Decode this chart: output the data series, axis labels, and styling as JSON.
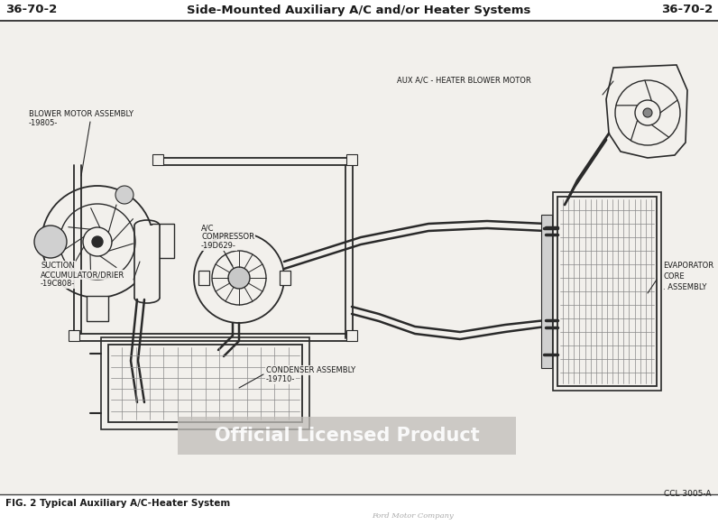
{
  "header_left": "36-70-2",
  "header_center": "Side-Mounted Auxiliary A/C and/or Heater Systems",
  "header_right": "36-70-2",
  "footer_caption": "FIG. 2 Typical Auxiliary A/C-Heater System",
  "footer_script": "Ford Motor Company",
  "watermark": "Official Licensed Product",
  "part_number_ccl": "CCL 3005-A",
  "labels": {
    "blower_motor_line1": "BLOWER MOTOR ASSEMBLY",
    "blower_motor_line2": "-19805-",
    "ac_comp_line1": "A/C",
    "ac_comp_line2": "COMPRESSOR",
    "ac_comp_line3": "-19D629-",
    "suction_line1": "SUCTION",
    "suction_line2": "ACCUMULATOR/DRIER",
    "suction_line3": "-19C808-",
    "condenser_line1": "CONDENSER ASSEMBLY",
    "condenser_line2": "-19710-",
    "aux_blower": "AUX A/C - HEATER BLOWER MOTOR",
    "evap_line1": "EVAPORATOR",
    "evap_line2": "CORE",
    "evap_line3": ". ASSEMBLY"
  },
  "page_bg": "#e8e6e0",
  "diagram_bg": "#f2f0ec",
  "header_bg": "#ffffff",
  "line_color": "#2a2a2a",
  "text_color": "#1a1a1a",
  "header_font_size": 9.5,
  "label_font_size": 6.0,
  "footer_font_size": 7.5,
  "watermark_font_size": 15,
  "watermark_bg": "#c0bdb8",
  "watermark_text_color": "#ffffff"
}
